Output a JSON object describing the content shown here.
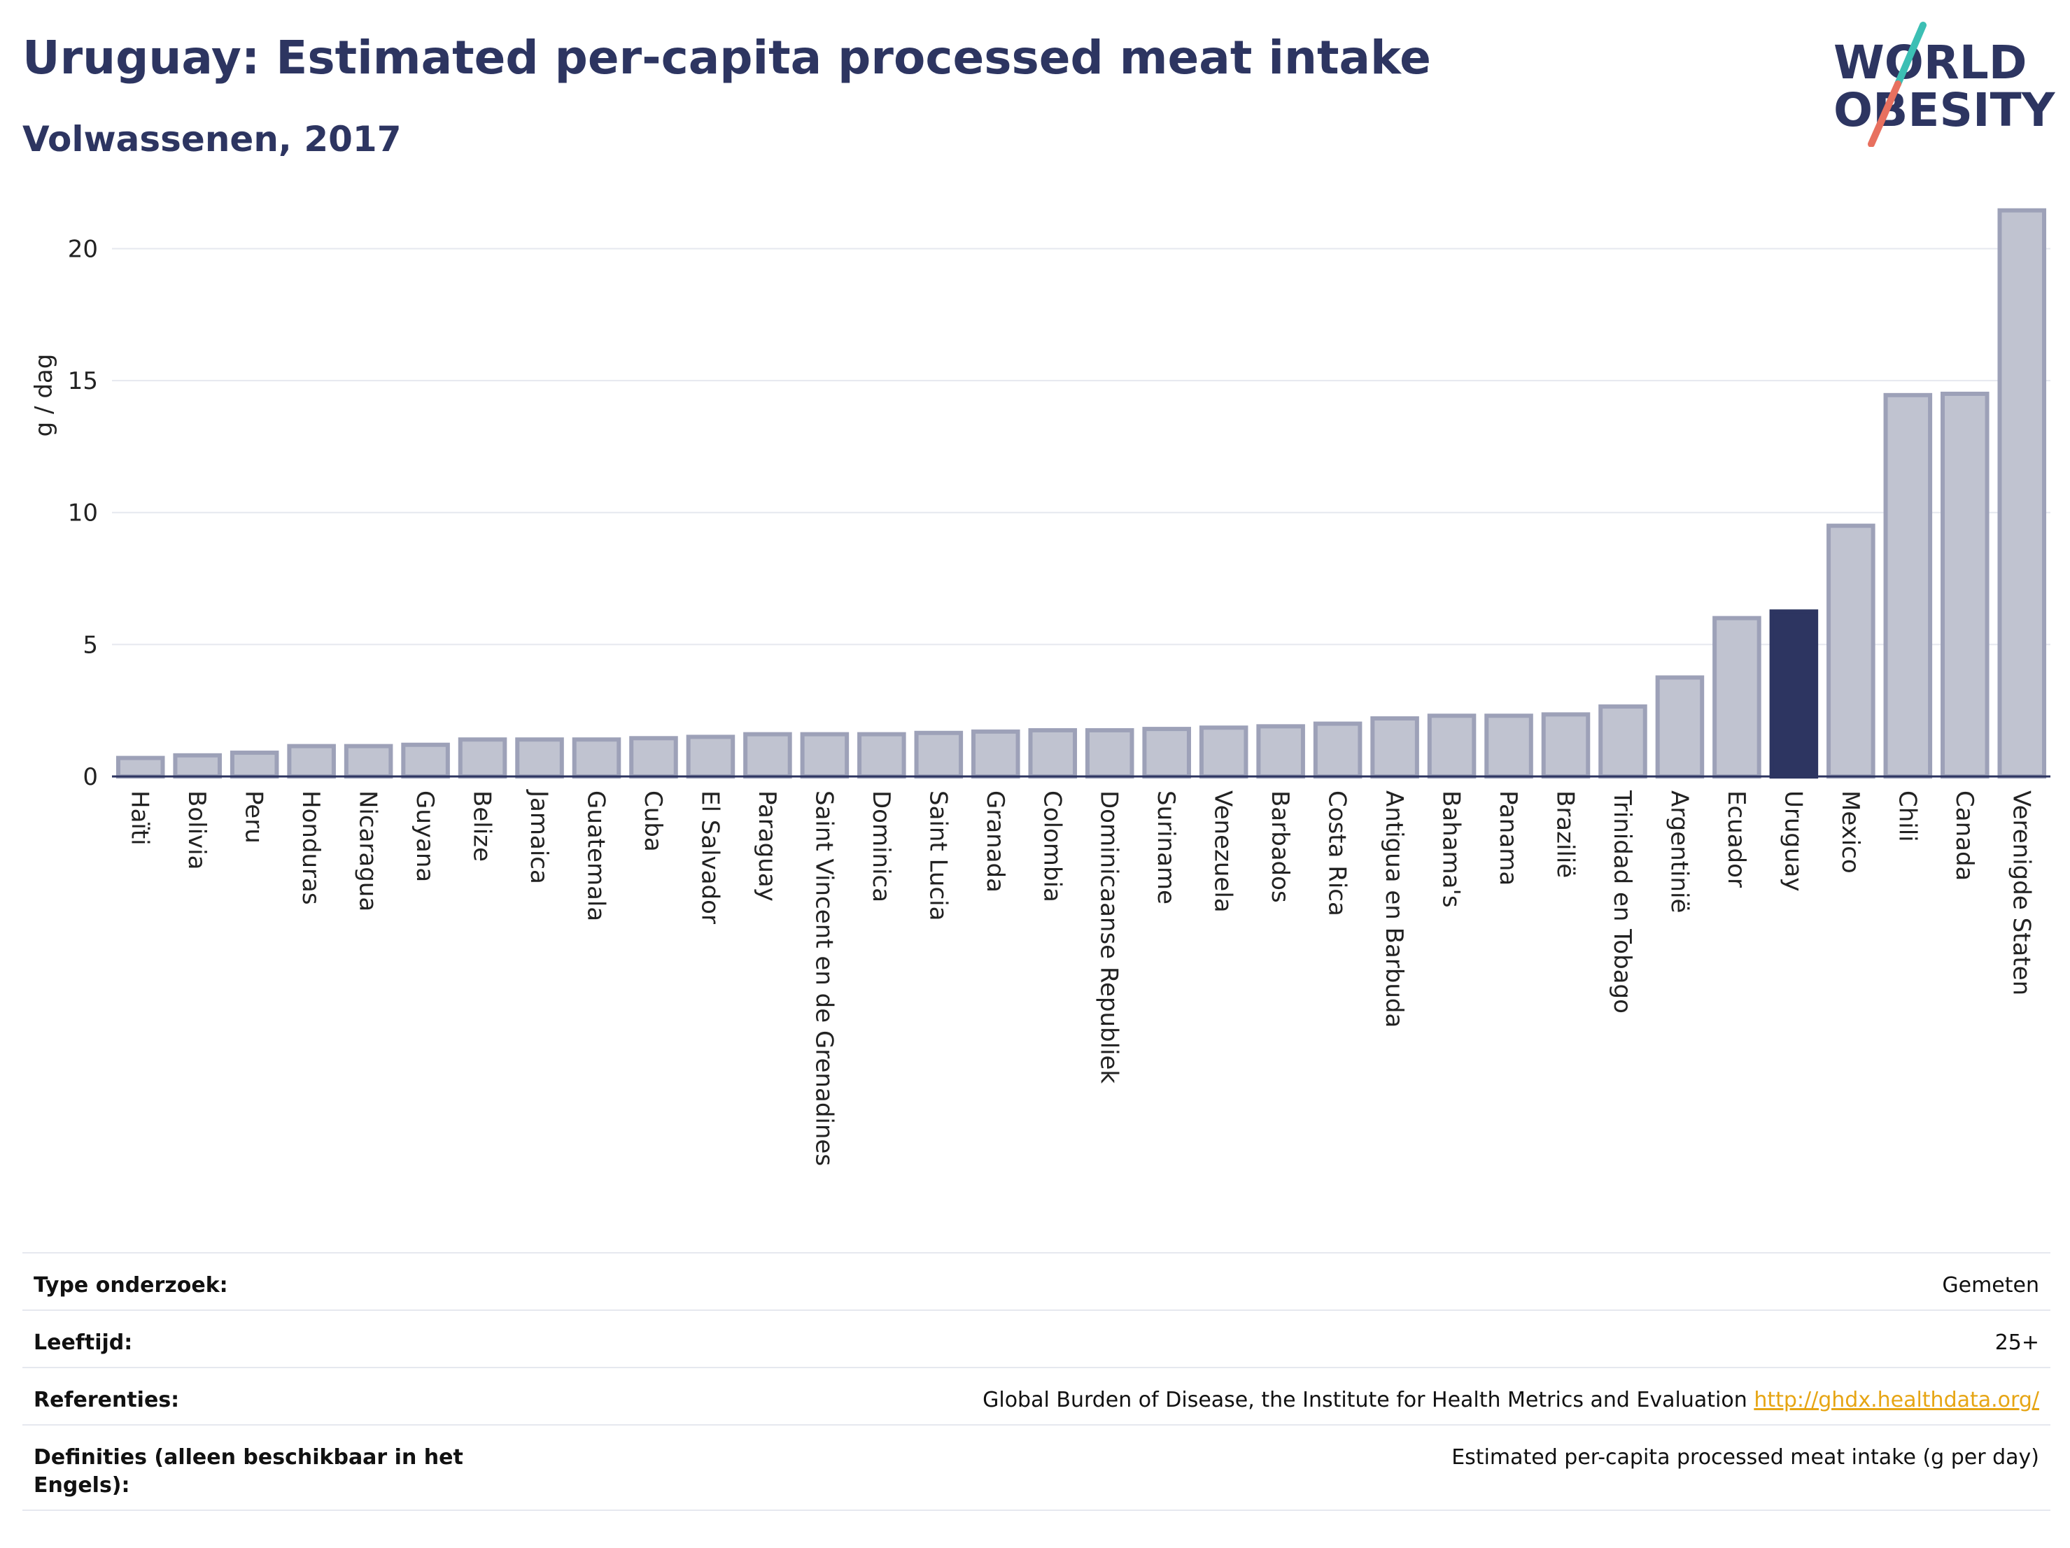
{
  "header": {
    "title": "Uruguay: Estimated per-capita processed meat intake",
    "subtitle": "Volwassenen, 2017"
  },
  "logo": {
    "line1": "WORLD",
    "line2": "OBESITY",
    "colors": {
      "text": "#2d3561",
      "teal": "#3cbfb4",
      "coral": "#e8705f"
    }
  },
  "chart_data": {
    "type": "bar",
    "title": "Uruguay: Estimated per-capita processed meat intake",
    "subtitle": "Volwassenen, 2017",
    "xlabel": "",
    "ylabel": "g / dag",
    "ylim": [
      0,
      22
    ],
    "yticks": [
      0,
      5,
      10,
      15,
      20
    ],
    "grid": true,
    "highlight": "Uruguay",
    "colors": {
      "bar": "#c0c3d0",
      "bar_border": "#9da1b8",
      "highlight": "#2d3561",
      "axis": "#2d3561",
      "grid": "#e6e8ef"
    },
    "categories": [
      "Haïti",
      "Bolivia",
      "Peru",
      "Honduras",
      "Nicaragua",
      "Guyana",
      "Belize",
      "Jamaica",
      "Guatemala",
      "Cuba",
      "El Salvador",
      "Paraguay",
      "Saint Vincent en de Grenadines",
      "Dominica",
      "Saint Lucia",
      "Granada",
      "Colombia",
      "Dominicaanse Republiek",
      "Suriname",
      "Venezuela",
      "Barbados",
      "Costa Rica",
      "Antigua en Barbuda",
      "Bahama's",
      "Panama",
      "Brazilië",
      "Trinidad en Tobago",
      "Argentinië",
      "Ecuador",
      "Uruguay",
      "Mexico",
      "Chili",
      "Canada",
      "Verenigde Staten"
    ],
    "values": [
      0.7,
      0.8,
      0.9,
      1.15,
      1.15,
      1.2,
      1.4,
      1.4,
      1.4,
      1.45,
      1.5,
      1.6,
      1.6,
      1.6,
      1.65,
      1.7,
      1.75,
      1.75,
      1.8,
      1.85,
      1.9,
      2.0,
      2.2,
      2.3,
      2.3,
      2.35,
      2.65,
      3.75,
      6.0,
      6.25,
      9.5,
      14.45,
      14.5,
      21.45
    ]
  },
  "meta": {
    "rows": [
      {
        "label": "Type onderzoek:",
        "value": "Gemeten"
      },
      {
        "label": "Leeftijd:",
        "value": "25+"
      },
      {
        "label": "Referenties:",
        "value": "Global Burden of Disease, the Institute for Health Metrics and Evaluation",
        "link": "http://ghdx.healthdata.org/"
      },
      {
        "label": "Definities (alleen beschikbaar in het Engels):",
        "value": "Estimated per-capita processed meat intake (g per day)"
      }
    ]
  }
}
